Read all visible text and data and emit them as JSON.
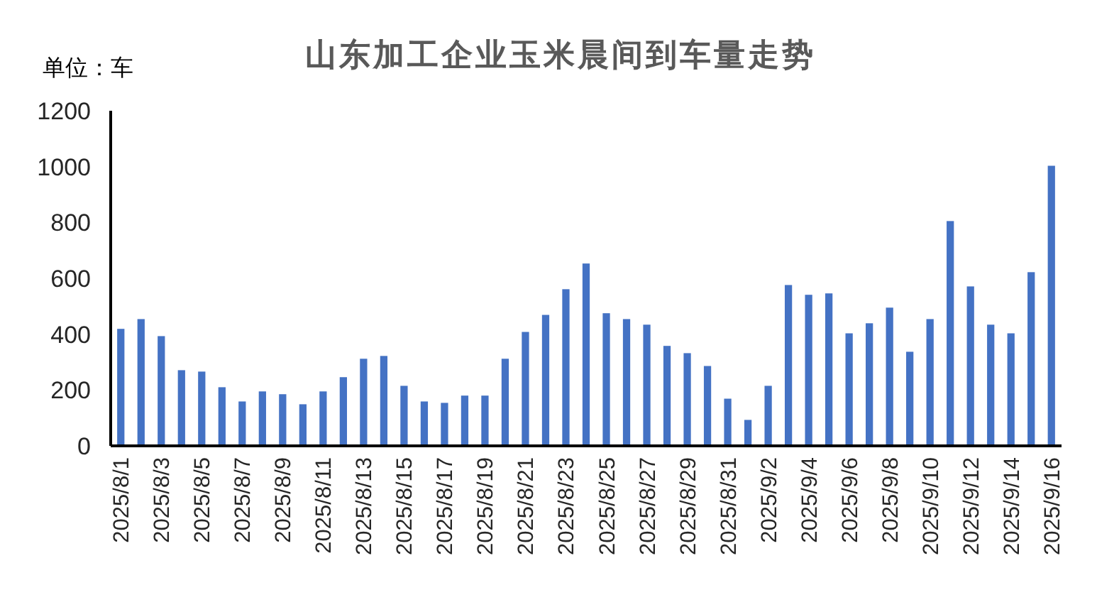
{
  "chart_data": {
    "type": "bar",
    "title": "山东加工企业玉米晨间到车量走势",
    "ylabel": "单位：车",
    "categories": [
      "2025/8/1",
      null,
      "2025/8/3",
      null,
      "2025/8/5",
      null,
      "2025/8/7",
      null,
      "2025/8/9",
      null,
      "2025/8/11",
      null,
      "2025/8/13",
      null,
      "2025/8/15",
      null,
      "2025/8/17",
      null,
      "2025/8/19",
      null,
      "2025/8/21",
      null,
      "2025/8/23",
      null,
      "2025/8/25",
      null,
      "2025/8/27",
      null,
      "2025/8/29",
      null,
      "2025/8/31",
      null,
      "2025/9/2",
      null,
      "2025/9/4",
      null,
      "2025/9/6",
      null,
      "2025/9/8",
      null,
      "2025/9/10",
      null,
      "2025/9/12",
      null,
      "2025/9/14",
      null,
      "2025/9/16"
    ],
    "values": [
      419,
      454,
      393,
      271,
      266,
      210,
      159,
      195,
      185,
      149,
      195,
      246,
      312,
      322,
      215,
      159,
      154,
      180,
      180,
      312,
      408,
      469,
      561,
      653,
      475,
      454,
      434,
      358,
      332,
      286,
      169,
      93,
      215,
      576,
      541,
      546,
      403,
      439,
      495,
      337,
      454,
      805,
      571,
      434,
      403,
      622,
      1003
    ],
    "color": "#4472c4",
    "ylim": [
      0,
      1200
    ],
    "yticks": [
      0,
      200,
      400,
      600,
      800,
      1000,
      1200
    ],
    "grid": false
  }
}
